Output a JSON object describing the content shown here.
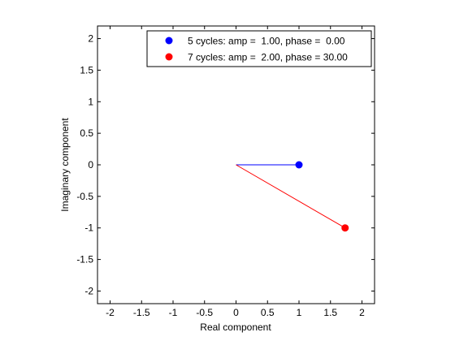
{
  "chart_data": {
    "type": "scatter",
    "xlabel": "Real component",
    "ylabel": "Imaginary component",
    "xlim": [
      -2.2,
      2.2
    ],
    "ylim": [
      -2.2,
      2.2
    ],
    "x_ticks": [
      -2,
      -1.5,
      -1,
      -0.5,
      0,
      0.5,
      1,
      1.5,
      2
    ],
    "x_tick_labels": [
      "-2",
      "-1.5",
      "-1",
      "-0.5",
      "0",
      "0.5",
      "1",
      "1.5",
      "2"
    ],
    "y_ticks": [
      2,
      1.5,
      1,
      0.5,
      0,
      -0.5,
      -1,
      -1.5,
      -2
    ],
    "y_tick_labels": [
      "2",
      "1.5",
      "1",
      "0.5",
      "0",
      "-0.5",
      "-1",
      "-1.5",
      "-2"
    ],
    "grid": false,
    "legend_position": "top-right",
    "series": [
      {
        "name": "5 cycles: amp =  1.00, phase =  0.00",
        "color": "#0000ff",
        "line_from": [
          0,
          0
        ],
        "point": [
          1.0,
          0.0
        ]
      },
      {
        "name": "7 cycles: amp =  2.00, phase = 30.00",
        "color": "#ff0000",
        "line_from": [
          0,
          0
        ],
        "point": [
          1.732,
          -1.0
        ]
      }
    ]
  }
}
